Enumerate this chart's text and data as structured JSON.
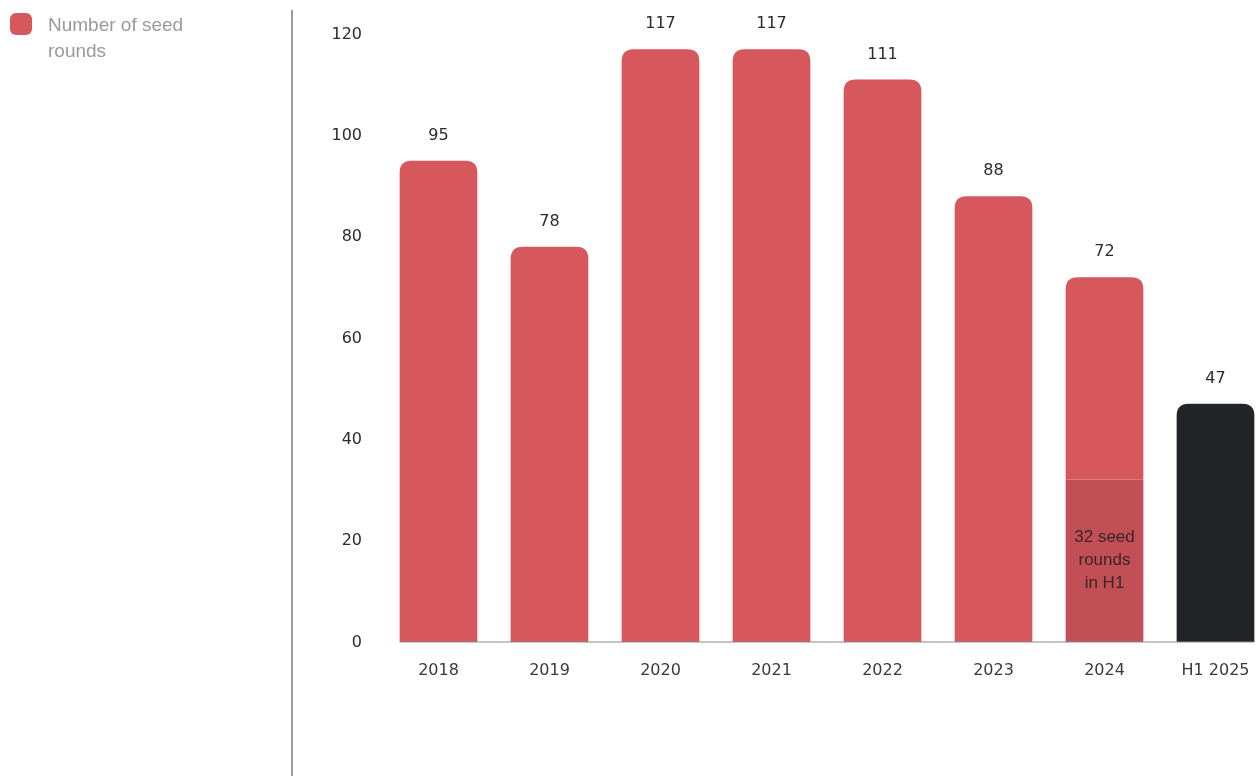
{
  "chart_data": {
    "type": "bar",
    "stacked": true,
    "categories": [
      "2018",
      "2019",
      "2020",
      "2021",
      "2022",
      "2023",
      "2024",
      "H1 2025"
    ],
    "series": [
      {
        "color": "#c24f55",
        "values": [
          null,
          null,
          null,
          null,
          null,
          null,
          32,
          null
        ]
      },
      {
        "name": "Number of seed rounds",
        "color": "#d6575c",
        "colors": [
          "#d6575c",
          "#d6575c",
          "#d6575c",
          "#d6575c",
          "#d6575c",
          "#d6575c",
          "#d6575c",
          "#222427"
        ],
        "values": [
          95,
          78,
          117,
          117,
          111,
          88,
          40,
          47
        ]
      }
    ],
    "ylim": [
      0,
      120
    ],
    "yticks": [
      0,
      20,
      40,
      60,
      80,
      100,
      120
    ],
    "totals": [
      "95",
      "78",
      "117",
      "117",
      "111",
      "88",
      "72",
      "47"
    ],
    "annotations": [
      {
        "text": "32 seed rounds in H1",
        "x": "2024",
        "y": 32
      }
    ],
    "legend": "top left"
  }
}
